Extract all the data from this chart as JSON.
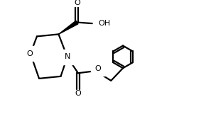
{
  "bg_color": "#ffffff",
  "line_color": "#000000",
  "line_width": 1.6,
  "fig_width": 2.9,
  "fig_height": 1.78,
  "dpi": 100,
  "xlim": [
    0,
    9
  ],
  "ylim": [
    0,
    5.5
  ]
}
